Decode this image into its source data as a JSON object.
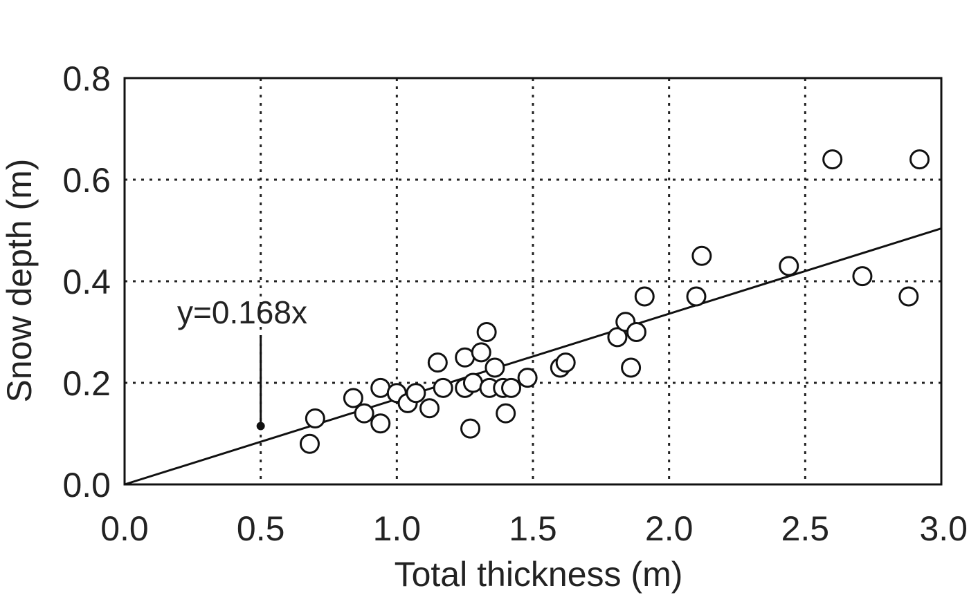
{
  "chart_data": {
    "type": "scatter",
    "title": "",
    "xlabel": "Total thickness (m)",
    "ylabel": "Snow depth (m)",
    "xlim": [
      0,
      3
    ],
    "ylim": [
      0,
      0.8
    ],
    "xticks": [
      "0.0",
      "0.5",
      "1.0",
      "1.5",
      "2.0",
      "2.5",
      "3.0"
    ],
    "yticks": [
      "0.0",
      "0.2",
      "0.4",
      "0.6",
      "0.8"
    ],
    "grid": true,
    "marker": "open-circle",
    "series": [
      {
        "points": [
          [
            0.68,
            0.08
          ],
          [
            0.7,
            0.13
          ],
          [
            0.84,
            0.17
          ],
          [
            0.88,
            0.14
          ],
          [
            0.94,
            0.12
          ],
          [
            0.94,
            0.19
          ],
          [
            1.0,
            0.18
          ],
          [
            1.04,
            0.16
          ],
          [
            1.07,
            0.18
          ],
          [
            1.12,
            0.15
          ],
          [
            1.15,
            0.24
          ],
          [
            1.17,
            0.19
          ],
          [
            1.25,
            0.25
          ],
          [
            1.25,
            0.19
          ],
          [
            1.27,
            0.11
          ],
          [
            1.28,
            0.2
          ],
          [
            1.31,
            0.26
          ],
          [
            1.33,
            0.3
          ],
          [
            1.34,
            0.19
          ],
          [
            1.36,
            0.23
          ],
          [
            1.39,
            0.19
          ],
          [
            1.4,
            0.14
          ],
          [
            1.42,
            0.19
          ],
          [
            1.48,
            0.21
          ],
          [
            1.6,
            0.23
          ],
          [
            1.62,
            0.24
          ],
          [
            1.81,
            0.29
          ],
          [
            1.84,
            0.32
          ],
          [
            1.86,
            0.23
          ],
          [
            1.88,
            0.3
          ],
          [
            1.91,
            0.37
          ],
          [
            2.1,
            0.37
          ],
          [
            2.12,
            0.45
          ],
          [
            2.44,
            0.43
          ],
          [
            2.6,
            0.64
          ],
          [
            2.71,
            0.41
          ],
          [
            2.88,
            0.37
          ],
          [
            2.92,
            0.64
          ]
        ]
      }
    ],
    "fit_line": {
      "slope": 0.168,
      "label": "y=0.168x"
    },
    "annotation": {
      "text": "y=0.168x",
      "arrow_to": [
        0.5,
        0.115
      ]
    }
  }
}
